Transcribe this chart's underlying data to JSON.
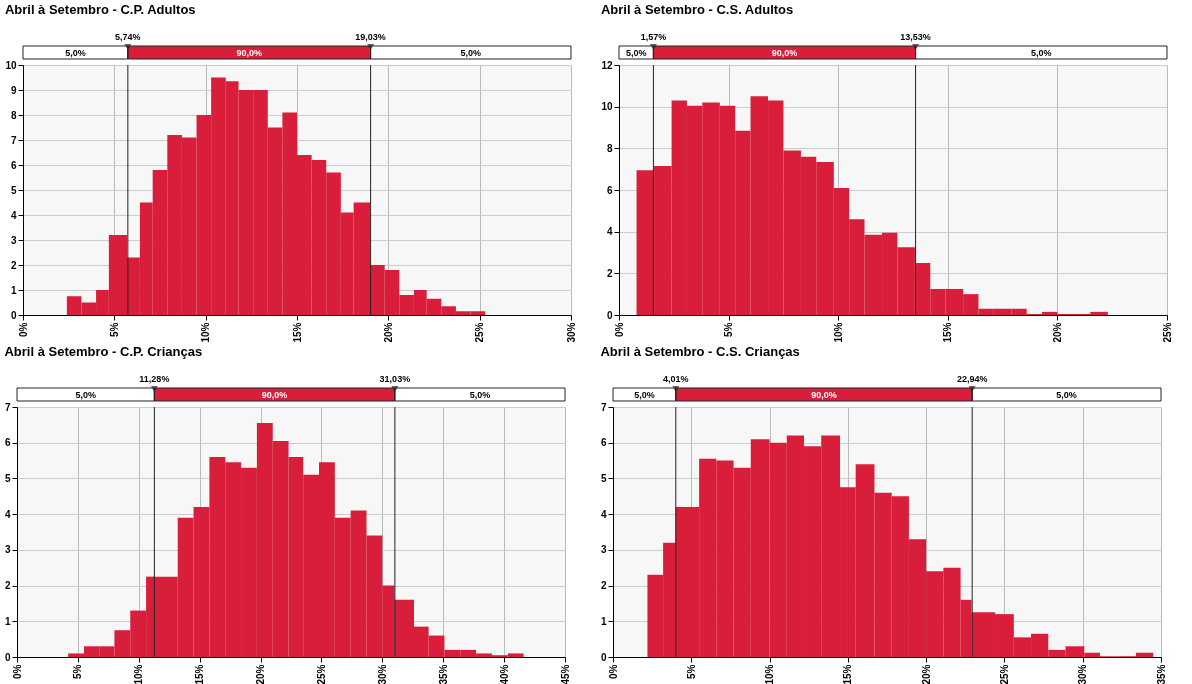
{
  "chart_data": [
    {
      "type": "histogram",
      "title": "Abril à Setembro - C.P. Adultos",
      "color": "#d81e3a",
      "bins": [
        2.4,
        3.2,
        4.0,
        4.7,
        5.7,
        6.4,
        7.1,
        7.9,
        8.7,
        9.5,
        10.3,
        11.1,
        11.8,
        12.6,
        13.4,
        14.2,
        15.0,
        15.8,
        16.6,
        17.4,
        18.1,
        19.0,
        19.8,
        20.6,
        21.4,
        22.1,
        22.9,
        23.7,
        24.5,
        25.3
      ],
      "values": [
        0.75,
        0.5,
        1.0,
        3.2,
        2.3,
        4.5,
        5.8,
        7.2,
        7.1,
        8.0,
        9.5,
        9.35,
        9.0,
        9.0,
        7.5,
        8.1,
        6.4,
        6.2,
        5.7,
        4.1,
        4.5,
        2.0,
        1.8,
        0.8,
        1.0,
        0.65,
        0.35,
        0.15,
        0.15
      ],
      "xlim": [
        0,
        30
      ],
      "xticks": [
        {
          "value": 0,
          "label": "0%"
        },
        {
          "value": 5,
          "label": "5%"
        },
        {
          "value": 10,
          "label": "10%"
        },
        {
          "value": 15,
          "label": "15%"
        },
        {
          "value": 20,
          "label": "20%"
        },
        {
          "value": 25,
          "label": "25%"
        },
        {
          "value": 30,
          "label": "30%"
        }
      ],
      "ylim": [
        0,
        10
      ],
      "yticks": [
        0,
        1,
        2,
        3,
        4,
        5,
        6,
        7,
        8,
        9,
        10
      ],
      "grid": true,
      "ref_lines": [
        {
          "axis": "x",
          "value": 5.74,
          "label": "5,74%"
        },
        {
          "axis": "x",
          "value": 19.03,
          "label": "19,03%"
        }
      ],
      "annotations": [
        "5,0%",
        "90,0%",
        "5,0%"
      ]
    },
    {
      "type": "histogram",
      "title": "Abril à Setembro - C.S. Adultos",
      "color": "#d81e3a",
      "bins": [
        0.8,
        1.6,
        2.4,
        3.1,
        3.8,
        4.6,
        5.3,
        6.0,
        6.8,
        7.5,
        8.3,
        9.0,
        9.8,
        10.5,
        11.2,
        12.0,
        12.7,
        13.5,
        14.2,
        14.9,
        15.7,
        16.4,
        17.1,
        17.9,
        18.6,
        19.3,
        20.0,
        20.8,
        21.5,
        22.3
      ],
      "values": [
        6.95,
        7.15,
        10.3,
        10.05,
        10.2,
        10.05,
        8.85,
        10.5,
        10.3,
        7.9,
        7.6,
        7.35,
        6.1,
        4.6,
        3.85,
        3.95,
        3.25,
        2.5,
        1.25,
        1.25,
        1.0,
        0.3,
        0.3,
        0.3,
        0.05,
        0.15,
        0.05,
        0.05,
        0.15
      ],
      "xlim": [
        0,
        25
      ],
      "xticks": [
        {
          "value": 0,
          "label": "0%"
        },
        {
          "value": 5,
          "label": "5%"
        },
        {
          "value": 10,
          "label": "10%"
        },
        {
          "value": 15,
          "label": "15%"
        },
        {
          "value": 20,
          "label": "20%"
        },
        {
          "value": 25,
          "label": "25%"
        }
      ],
      "ylim": [
        0,
        12
      ],
      "yticks": [
        0,
        2,
        4,
        6,
        8,
        10,
        12
      ],
      "grid": true,
      "ref_lines": [
        {
          "axis": "x",
          "value": 1.57,
          "label": "1,57%"
        },
        {
          "axis": "x",
          "value": 13.53,
          "label": "13,53%"
        }
      ],
      "annotations": [
        "5,0%",
        "90,0%",
        "5,0%"
      ]
    },
    {
      "type": "histogram",
      "title": "Abril à Setembro - C.P. Crianças",
      "color": "#d81e3a",
      "bins": [
        4.2,
        5.5,
        6.8,
        8.0,
        9.3,
        10.6,
        11.3,
        13.2,
        14.5,
        15.8,
        17.1,
        18.4,
        19.7,
        21.0,
        22.3,
        23.5,
        24.8,
        26.1,
        27.4,
        28.7,
        30.0,
        31.0,
        32.6,
        33.8,
        35.1,
        36.4,
        37.7,
        39.0,
        40.3,
        41.6
      ],
      "values": [
        0.1,
        0.3,
        0.3,
        0.75,
        1.3,
        2.25,
        2.25,
        3.9,
        4.2,
        5.6,
        5.45,
        5.3,
        6.55,
        6.05,
        5.6,
        5.1,
        5.45,
        3.9,
        4.1,
        3.4,
        2.0,
        1.6,
        0.85,
        0.6,
        0.2,
        0.2,
        0.1,
        0.05,
        0.1
      ],
      "xlim": [
        0,
        45
      ],
      "xticks": [
        {
          "value": 0,
          "label": "0%"
        },
        {
          "value": 5,
          "label": "5%"
        },
        {
          "value": 10,
          "label": "10%"
        },
        {
          "value": 15,
          "label": "15%"
        },
        {
          "value": 20,
          "label": "20%"
        },
        {
          "value": 25,
          "label": "25%"
        },
        {
          "value": 30,
          "label": "30%"
        },
        {
          "value": 35,
          "label": "35%"
        },
        {
          "value": 40,
          "label": "40%"
        },
        {
          "value": 45,
          "label": "45%"
        }
      ],
      "ylim": [
        0,
        7
      ],
      "yticks": [
        0,
        1,
        2,
        3,
        4,
        5,
        6,
        7
      ],
      "grid": true,
      "ref_lines": [
        {
          "axis": "x",
          "value": 11.28,
          "label": "11,28%"
        },
        {
          "axis": "x",
          "value": 31.03,
          "label": "31,03%"
        }
      ],
      "annotations": [
        "5,0%",
        "90,0%",
        "5,0%"
      ]
    },
    {
      "type": "histogram",
      "title": "Abril à Setembro - C.S. Crianças",
      "color": "#d81e3a",
      "bins": [
        2.2,
        3.2,
        4.0,
        5.5,
        6.6,
        7.7,
        8.8,
        10.0,
        11.1,
        12.2,
        13.3,
        14.5,
        15.5,
        16.7,
        17.8,
        18.9,
        20.0,
        21.1,
        22.2,
        22.9,
        24.4,
        25.6,
        26.7,
        27.8,
        28.9,
        30.1,
        31.1,
        32.3,
        33.4,
        34.5
      ],
      "values": [
        2.3,
        3.2,
        4.2,
        5.55,
        5.5,
        5.3,
        6.1,
        6.0,
        6.2,
        5.9,
        6.2,
        4.75,
        5.4,
        4.6,
        4.5,
        3.3,
        2.4,
        2.5,
        1.6,
        1.25,
        1.2,
        0.55,
        0.65,
        0.2,
        0.3,
        0.12,
        0.02,
        0.02,
        0.12
      ],
      "xlim": [
        0,
        35
      ],
      "xticks": [
        {
          "value": 0,
          "label": "0%"
        },
        {
          "value": 5,
          "label": "5%"
        },
        {
          "value": 10,
          "label": "10%"
        },
        {
          "value": 15,
          "label": "15%"
        },
        {
          "value": 20,
          "label": "20%"
        },
        {
          "value": 25,
          "label": "25%"
        },
        {
          "value": 30,
          "label": "30%"
        },
        {
          "value": 35,
          "label": "35%"
        }
      ],
      "ylim": [
        0,
        7
      ],
      "yticks": [
        0,
        1,
        2,
        3,
        4,
        5,
        6,
        7
      ],
      "grid": true,
      "ref_lines": [
        {
          "axis": "x",
          "value": 4.01,
          "label": "4,01%"
        },
        {
          "axis": "x",
          "value": 22.94,
          "label": "22,94%"
        }
      ],
      "annotations": [
        "5,0%",
        "90,0%",
        "5,0%"
      ]
    }
  ]
}
